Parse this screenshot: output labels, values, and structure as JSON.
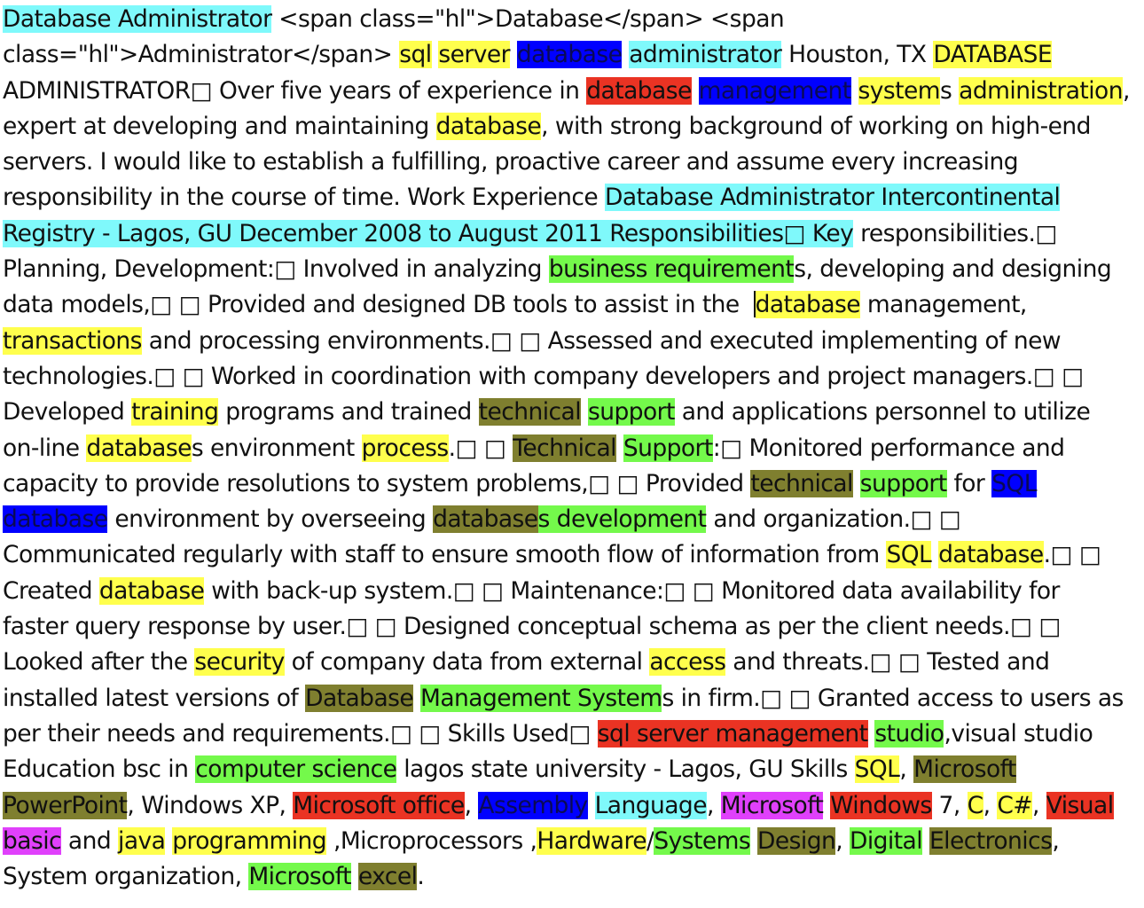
{
  "colors": {
    "yellow": "#ffff4d",
    "cyan": "#7ff9fb",
    "blue": "#0000ff",
    "red": "#ea3323",
    "green": "#74f94b",
    "olive": "#7f7f2f",
    "magenta": "#e040fb"
  },
  "segments": [
    {
      "t": "Database Administrator",
      "h": "cyan"
    },
    {
      "t": " <span class=\"hl\">Database</span> <span class=\"hl\">Administrator</span> "
    },
    {
      "t": "sql",
      "h": "yellow"
    },
    {
      "t": " "
    },
    {
      "t": "server",
      "h": "yellow"
    },
    {
      "t": " "
    },
    {
      "t": "database",
      "h": "blue"
    },
    {
      "t": " "
    },
    {
      "t": "administrator",
      "h": "cyan"
    },
    {
      "t": " Houston, TX "
    },
    {
      "t": "DATABASE",
      "h": "yellow"
    },
    {
      "t": " ADMINISTRATOR□ Over five years of experience in "
    },
    {
      "t": "database",
      "h": "red"
    },
    {
      "t": " "
    },
    {
      "t": "management",
      "h": "blue"
    },
    {
      "t": " "
    },
    {
      "t": "system",
      "h": "yellow"
    },
    {
      "t": "s "
    },
    {
      "t": "administration",
      "h": "yellow"
    },
    {
      "t": ", expert at developing and maintaining "
    },
    {
      "t": "database",
      "h": "yellow"
    },
    {
      "t": ", with strong background of working on high-end servers. I would like to establish a fulfilling, proactive career and assume every increasing responsibility in the course of time. Work Experience "
    },
    {
      "t": "Database Administrator Intercontinental Registry - Lagos, GU December 2008 to August 2011 Responsibilities□ Key",
      "h": "cyan"
    },
    {
      "t": " responsibilities.□ Planning, Development:□ Involved in analyzing "
    },
    {
      "t": "business requirement",
      "h": "green"
    },
    {
      "t": "s, developing and designing data models,□ □ Provided and designed DB tools to assist in the ",
      "caret": true
    },
    {
      "t": "database",
      "h": "yellow"
    },
    {
      "t": " management, "
    },
    {
      "t": "transactions",
      "h": "yellow"
    },
    {
      "t": " and processing environments.□ □ Assessed and executed implementing of new technologies.□ □ Worked in coordination with company developers and project managers.□ □ Developed "
    },
    {
      "t": "training",
      "h": "yellow"
    },
    {
      "t": " programs and trained "
    },
    {
      "t": "technical",
      "h": "olive"
    },
    {
      "t": " "
    },
    {
      "t": "support",
      "h": "green"
    },
    {
      "t": " and applications personnel to utilize on-line "
    },
    {
      "t": "database",
      "h": "yellow"
    },
    {
      "t": "s environment "
    },
    {
      "t": "process",
      "h": "yellow"
    },
    {
      "t": ".□ □ "
    },
    {
      "t": "Technical",
      "h": "olive"
    },
    {
      "t": " "
    },
    {
      "t": "Support",
      "h": "green"
    },
    {
      "t": ":□ Monitored performance and capacity to provide resolutions to system problems,□ □ Provided "
    },
    {
      "t": "technical",
      "h": "olive"
    },
    {
      "t": " "
    },
    {
      "t": "support",
      "h": "green"
    },
    {
      "t": " for "
    },
    {
      "t": "SQL",
      "h": "blue"
    },
    {
      "t": " "
    },
    {
      "t": "database",
      "h": "blue"
    },
    {
      "t": " environment by overseeing "
    },
    {
      "t": "database",
      "h": "olive"
    },
    {
      "t": "s development",
      "h": "green"
    },
    {
      "t": " and organization.□ □ Communicated regularly with staff to ensure smooth flow of information from "
    },
    {
      "t": "SQL",
      "h": "yellow"
    },
    {
      "t": " "
    },
    {
      "t": "database",
      "h": "yellow"
    },
    {
      "t": ".□ □ Created "
    },
    {
      "t": "database",
      "h": "yellow"
    },
    {
      "t": " with back-up system.□ □ Maintenance:□ □ Monitored data availability for faster query response by user.□ □ Designed conceptual schema as per the client needs.□ □ Looked after the "
    },
    {
      "t": "security",
      "h": "yellow"
    },
    {
      "t": " of company data from external "
    },
    {
      "t": "access",
      "h": "yellow"
    },
    {
      "t": " and threats.□ □ Tested and installed latest versions of "
    },
    {
      "t": "Database",
      "h": "olive"
    },
    {
      "t": " "
    },
    {
      "t": "Management System",
      "h": "green"
    },
    {
      "t": "s in firm.□ □ Granted access to users as per their needs and requirements.□ □ Skills Used□ "
    },
    {
      "t": "sql server management",
      "h": "red"
    },
    {
      "t": " "
    },
    {
      "t": "studio",
      "h": "green"
    },
    {
      "t": ",visual studio Education bsc in "
    },
    {
      "t": "computer science",
      "h": "green"
    },
    {
      "t": " lagos state university - Lagos, GU Skills "
    },
    {
      "t": "SQL",
      "h": "yellow"
    },
    {
      "t": ", "
    },
    {
      "t": "Microsoft PowerPoint",
      "h": "olive"
    },
    {
      "t": ", Windows XP, "
    },
    {
      "t": "Microsoft office",
      "h": "red"
    },
    {
      "t": ", "
    },
    {
      "t": "Assembly",
      "h": "blue"
    },
    {
      "t": " "
    },
    {
      "t": "Language",
      "h": "cyan"
    },
    {
      "t": ", "
    },
    {
      "t": "Microsoft",
      "h": "magenta"
    },
    {
      "t": " "
    },
    {
      "t": "Windows",
      "h": "red"
    },
    {
      "t": " 7, "
    },
    {
      "t": "C",
      "h": "yellow"
    },
    {
      "t": ", "
    },
    {
      "t": "C#",
      "h": "yellow"
    },
    {
      "t": ", "
    },
    {
      "t": "Visual",
      "h": "red"
    },
    {
      "t": " "
    },
    {
      "t": "basic",
      "h": "magenta"
    },
    {
      "t": " and "
    },
    {
      "t": "java",
      "h": "yellow"
    },
    {
      "t": " "
    },
    {
      "t": "programming",
      "h": "yellow"
    },
    {
      "t": " ,Microprocessors ,"
    },
    {
      "t": "Hardware",
      "h": "yellow"
    },
    {
      "t": "/"
    },
    {
      "t": "Systems",
      "h": "green"
    },
    {
      "t": " "
    },
    {
      "t": "Design",
      "h": "olive"
    },
    {
      "t": ", "
    },
    {
      "t": "Digital",
      "h": "green"
    },
    {
      "t": " "
    },
    {
      "t": "Electronics",
      "h": "olive"
    },
    {
      "t": ", System organization, "
    },
    {
      "t": "Microsoft",
      "h": "green"
    },
    {
      "t": " "
    },
    {
      "t": "excel",
      "h": "olive"
    },
    {
      "t": "."
    }
  ]
}
